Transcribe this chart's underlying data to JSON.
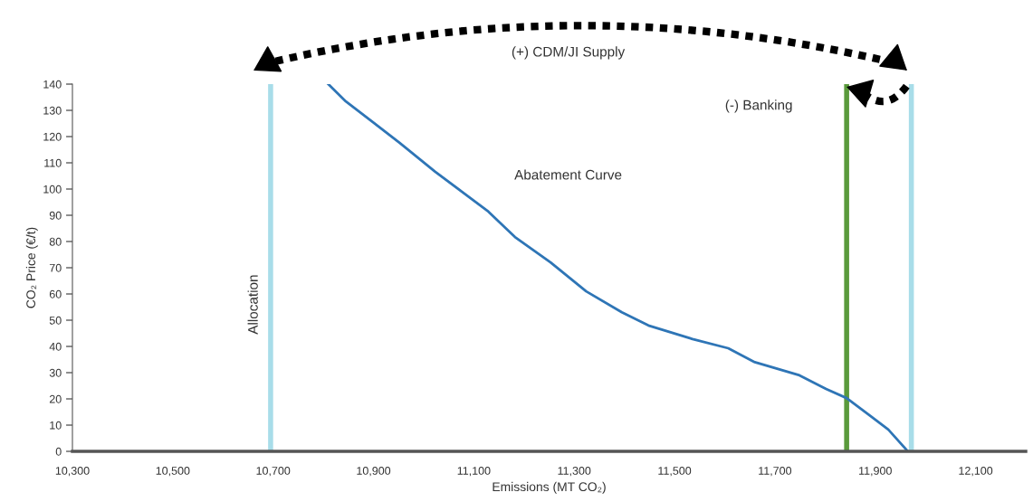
{
  "chart_data": {
    "type": "line",
    "xlabel": "Emissions (MT CO₂)",
    "ylabel": "CO₂ Price (€/t)",
    "x": [
      10810,
      10845,
      10899,
      10952,
      11023,
      11076,
      11129,
      11182,
      11253,
      11324,
      11395,
      11448,
      11536,
      11607,
      11660,
      11749,
      11802,
      11843,
      11891,
      11926,
      11965
    ],
    "series": [
      {
        "color": "#2e75b6",
        "values": [
          140,
          133.4,
          125.5,
          117.6,
          106.6,
          99,
          91.4,
          81.7,
          72,
          61,
          53,
          48,
          42.8,
          39.3,
          34,
          29,
          23.8,
          20.3,
          13.4,
          8.3,
          0
        ]
      }
    ],
    "xlim": [
      10300,
      12200
    ],
    "xticks": [
      {
        "value": 10300,
        "label": "10,300"
      },
      {
        "value": 10500,
        "label": "10,500"
      },
      {
        "value": 10700,
        "label": "10,700"
      },
      {
        "value": 10900,
        "label": "10,900"
      },
      {
        "value": 11100,
        "label": "11,100"
      },
      {
        "value": 11300,
        "label": "11,300"
      },
      {
        "value": 11500,
        "label": "11,500"
      },
      {
        "value": 11700,
        "label": "11,700"
      },
      {
        "value": 11900,
        "label": "11,900"
      },
      {
        "value": 12100,
        "label": "12,100"
      }
    ],
    "ylim": [
      0,
      140
    ],
    "yticks": [
      0,
      10,
      20,
      30,
      40,
      50,
      60,
      70,
      80,
      90,
      100,
      110,
      120,
      130,
      140
    ],
    "ref_lines": [
      {
        "axis": "x",
        "value": 10695,
        "label": "Allocation",
        "color": "#a8dde9"
      },
      {
        "axis": "x",
        "value": 11843,
        "color": "#5a9a3c"
      },
      {
        "axis": "x",
        "value": 11972,
        "color": "#a8dde9"
      }
    ],
    "annotations": [
      "(+) CDM/JI Supply",
      "(-) Banking",
      "Abatement Curve"
    ],
    "marker": "none",
    "line_style": "solid"
  }
}
